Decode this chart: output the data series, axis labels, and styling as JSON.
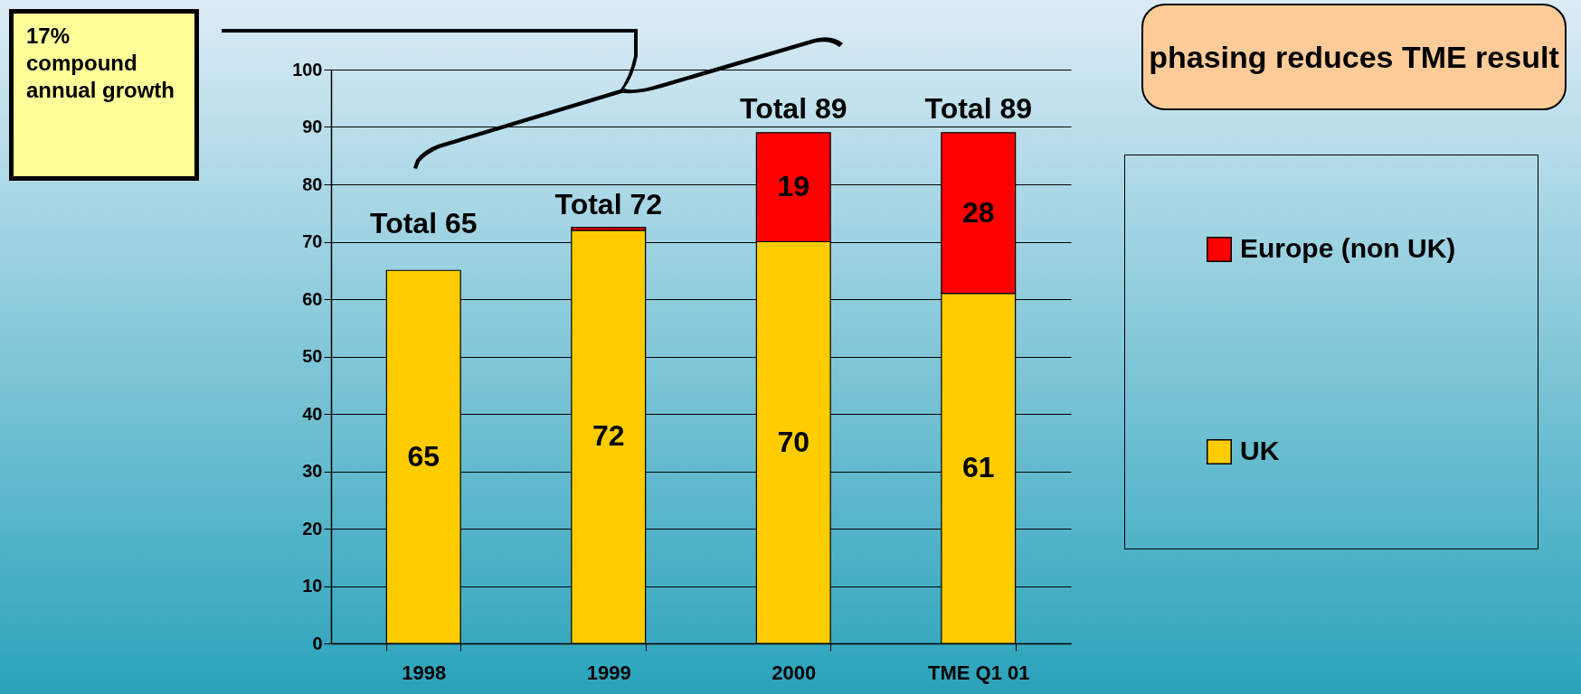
{
  "chart_data": {
    "type": "bar",
    "stacked": true,
    "categories": [
      "1998",
      "1999",
      "2000",
      "TME Q1 01"
    ],
    "series": [
      {
        "name": "UK",
        "color": "#ffcc00",
        "values": [
          65,
          72,
          70,
          61
        ],
        "value_labels": [
          "65",
          "72",
          "70",
          "61"
        ]
      },
      {
        "name": "Europe (non UK)",
        "color": "#ff0000",
        "values": [
          null,
          0.5,
          19,
          28
        ],
        "value_labels": [
          null,
          null,
          "19",
          "28"
        ]
      }
    ],
    "totals": [
      "Total 65",
      "Total 72",
      "Total 89",
      "Total 89"
    ],
    "ylim": [
      0,
      100
    ],
    "yticks": [
      0,
      10,
      20,
      30,
      40,
      50,
      60,
      70,
      80,
      90,
      100
    ],
    "grid": "y",
    "legend": "right",
    "annotations": [
      "17% compound annual growth",
      "phasing reduces TME result"
    ]
  }
}
